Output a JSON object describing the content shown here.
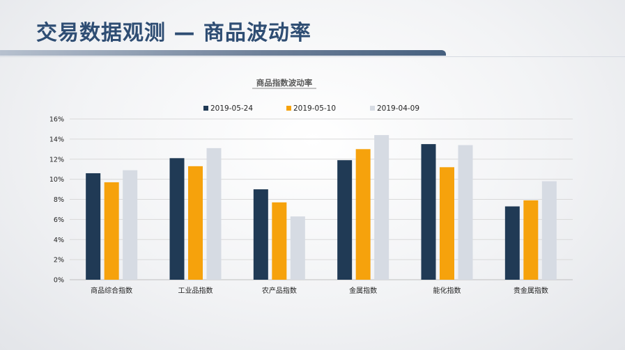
{
  "slide": {
    "title": "交易数据观测 — 商品波动率"
  },
  "chart_data": {
    "type": "bar",
    "title": "商品指数波动率",
    "categories": [
      "商品综合指数",
      "工业品指数",
      "农产品指数",
      "金属指数",
      "能化指数",
      "贵金属指数"
    ],
    "series": [
      {
        "name": "2019-05-24",
        "color": "#203a55",
        "values": [
          10.6,
          12.1,
          9.0,
          11.9,
          13.5,
          7.3
        ]
      },
      {
        "name": "2019-05-10",
        "color": "#f6a20c",
        "values": [
          9.7,
          11.3,
          7.7,
          13.0,
          11.2,
          7.9
        ]
      },
      {
        "name": "2019-04-09",
        "color": "#d6dbe3",
        "values": [
          10.9,
          13.1,
          6.3,
          14.4,
          13.4,
          9.8
        ]
      }
    ],
    "yticks": [
      "0%",
      "2%",
      "4%",
      "6%",
      "8%",
      "10%",
      "12%",
      "14%",
      "16%"
    ],
    "ylim": [
      0,
      16
    ],
    "grid": true,
    "legend_position": "top-center"
  }
}
